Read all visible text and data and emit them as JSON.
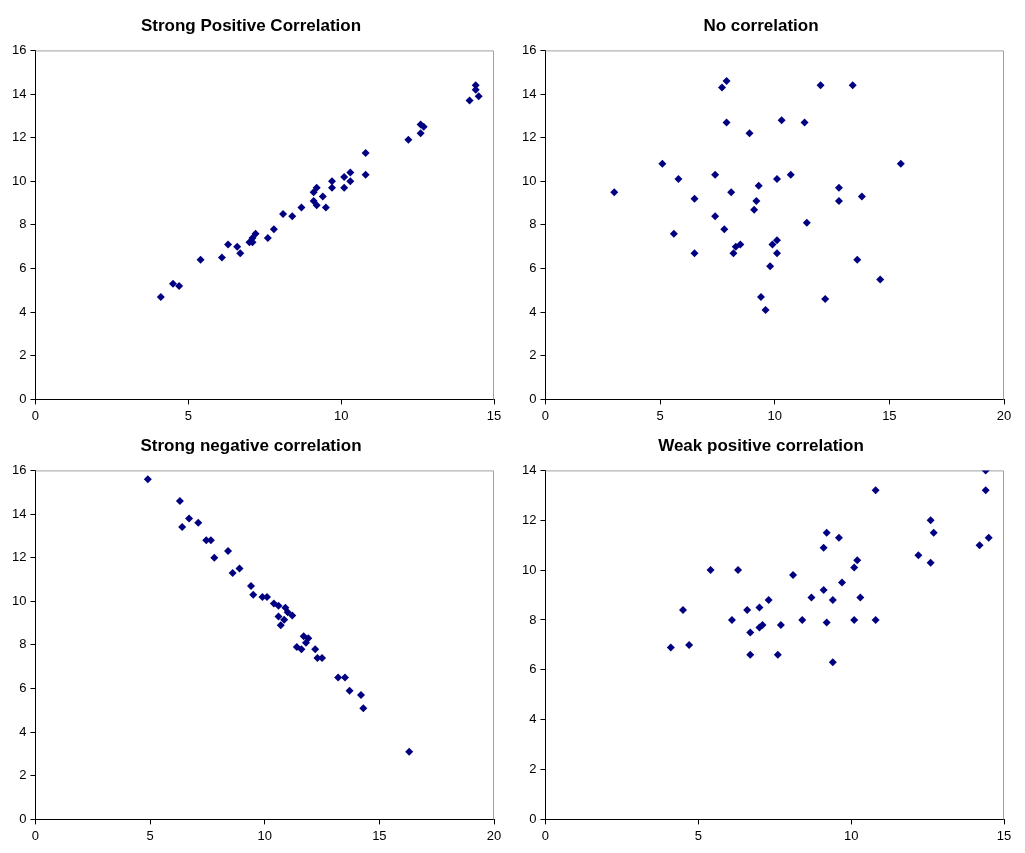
{
  "chart_data": [
    {
      "type": "scatter",
      "title": "Strong Positive Correlation",
      "color": "#000080",
      "marker": "diamond",
      "grid": false,
      "legend": false,
      "xlim": [
        0,
        15
      ],
      "xticks": [
        0,
        5,
        10,
        15
      ],
      "ylim": [
        0,
        16
      ],
      "yticks": [
        0,
        2,
        4,
        6,
        8,
        10,
        12,
        14,
        16
      ],
      "x": [
        4.1,
        4.5,
        4.7,
        5.4,
        6.1,
        6.3,
        6.6,
        6.7,
        7.0,
        7.1,
        7.1,
        7.2,
        7.6,
        7.8,
        8.1,
        8.4,
        8.7,
        9.1,
        9.1,
        9.2,
        9.2,
        9.4,
        9.5,
        9.7,
        9.7,
        10.1,
        10.1,
        10.3,
        10.3,
        10.8,
        10.8,
        12.2,
        12.6,
        12.6,
        12.7,
        14.2,
        14.4,
        14.4,
        14.5
      ],
      "values": [
        4.7,
        5.3,
        5.2,
        6.4,
        6.5,
        7.1,
        7.0,
        6.7,
        7.2,
        7.4,
        7.2,
        7.6,
        7.4,
        7.8,
        8.5,
        8.4,
        8.8,
        9.1,
        9.5,
        9.7,
        8.9,
        9.3,
        8.8,
        10.0,
        9.7,
        9.7,
        10.2,
        10.4,
        10.0,
        11.3,
        10.3,
        11.9,
        12.2,
        12.6,
        12.5,
        13.7,
        14.4,
        14.2,
        13.9
      ]
    },
    {
      "type": "scatter",
      "title": "No correlation",
      "color": "#000080",
      "marker": "diamond",
      "grid": false,
      "legend": false,
      "xlim": [
        0,
        20
      ],
      "xticks": [
        0,
        5,
        10,
        15,
        20
      ],
      "ylim": [
        0,
        16
      ],
      "yticks": [
        0,
        2,
        4,
        6,
        8,
        10,
        12,
        14,
        16
      ],
      "x": [
        3.0,
        5.1,
        5.6,
        5.8,
        6.5,
        6.5,
        7.4,
        7.4,
        7.7,
        7.9,
        7.9,
        7.8,
        8.1,
        8.2,
        8.3,
        8.5,
        8.9,
        9.1,
        9.2,
        9.3,
        9.4,
        9.6,
        9.8,
        9.9,
        10.1,
        10.1,
        10.1,
        10.3,
        10.7,
        11.3,
        11.4,
        12.0,
        12.2,
        12.8,
        12.8,
        13.4,
        13.6,
        13.8,
        14.6,
        15.5
      ],
      "values": [
        9.5,
        10.8,
        7.6,
        10.1,
        6.7,
        9.2,
        10.3,
        8.4,
        14.3,
        14.6,
        12.7,
        7.8,
        9.5,
        6.7,
        7.0,
        7.1,
        12.2,
        8.7,
        9.1,
        9.8,
        4.7,
        4.1,
        6.1,
        7.1,
        10.1,
        7.3,
        6.7,
        12.8,
        10.3,
        12.7,
        8.1,
        14.4,
        4.6,
        9.7,
        9.1,
        14.4,
        6.4,
        9.3,
        5.5,
        10.8
      ]
    },
    {
      "type": "scatter",
      "title": "Strong negative correlation",
      "color": "#000080",
      "marker": "diamond",
      "grid": false,
      "legend": false,
      "xlim": [
        0,
        20
      ],
      "xticks": [
        0,
        5,
        10,
        15,
        20
      ],
      "ylim": [
        0,
        16
      ],
      "yticks": [
        0,
        2,
        4,
        6,
        8,
        10,
        12,
        14,
        16
      ],
      "x": [
        4.9,
        6.3,
        6.4,
        6.7,
        7.1,
        7.45,
        7.65,
        7.8,
        8.4,
        8.6,
        8.9,
        9.4,
        9.5,
        9.9,
        10.1,
        10.4,
        10.6,
        10.6,
        10.9,
        10.7,
        10.85,
        11.0,
        11.2,
        11.4,
        11.6,
        11.7,
        11.8,
        11.9,
        12.2,
        12.3,
        12.5,
        13.2,
        13.5,
        13.7,
        14.2,
        14.3,
        16.3
      ],
      "values": [
        15.6,
        14.6,
        13.4,
        13.8,
        13.6,
        12.8,
        12.8,
        12.0,
        12.3,
        11.3,
        11.5,
        10.7,
        10.3,
        10.2,
        10.2,
        9.9,
        9.8,
        9.3,
        9.7,
        8.9,
        9.15,
        9.5,
        9.35,
        7.9,
        7.8,
        8.4,
        8.1,
        8.3,
        7.8,
        7.4,
        7.4,
        6.5,
        6.5,
        5.9,
        5.7,
        5.1,
        3.1
      ]
    },
    {
      "type": "scatter",
      "title": "Weak positive correlation",
      "color": "#000080",
      "marker": "diamond",
      "grid": false,
      "legend": false,
      "xlim": [
        0,
        15
      ],
      "xticks": [
        0,
        5,
        10,
        15
      ],
      "ylim": [
        0,
        14
      ],
      "yticks": [
        0,
        2,
        4,
        6,
        8,
        10,
        12,
        14
      ],
      "x": [
        4.1,
        4.5,
        4.7,
        5.4,
        6.1,
        6.3,
        6.6,
        6.7,
        6.7,
        7.0,
        7.0,
        7.1,
        7.3,
        7.6,
        7.7,
        8.1,
        8.4,
        8.7,
        9.1,
        9.1,
        9.2,
        9.2,
        9.4,
        9.4,
        9.6,
        9.7,
        10.1,
        10.1,
        10.2,
        10.3,
        10.8,
        10.8,
        12.2,
        12.6,
        12.7,
        12.6,
        14.2,
        14.4,
        14.4,
        14.5
      ],
      "values": [
        6.9,
        8.4,
        7.0,
        10.0,
        8.0,
        10.0,
        8.4,
        7.5,
        6.6,
        8.5,
        7.7,
        7.8,
        8.8,
        6.6,
        7.8,
        9.8,
        8.0,
        8.9,
        10.9,
        9.2,
        11.5,
        7.9,
        8.8,
        6.3,
        11.3,
        9.5,
        10.1,
        8.0,
        10.4,
        8.9,
        13.2,
        8.0,
        10.6,
        12.0,
        11.5,
        10.3,
        11.0,
        13.2,
        14.0,
        11.3
      ]
    }
  ]
}
